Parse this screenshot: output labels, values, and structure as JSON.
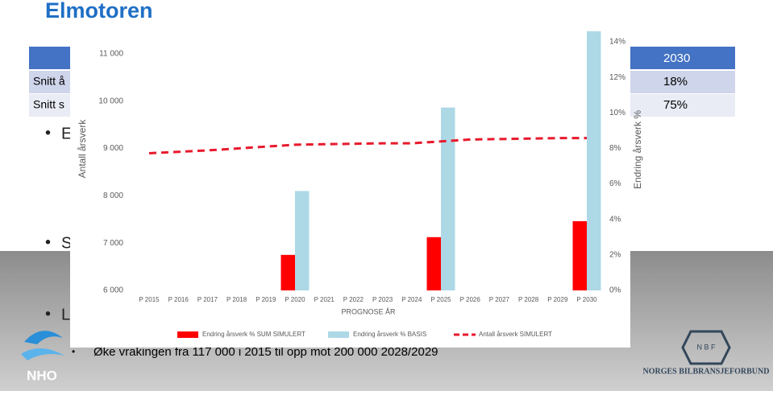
{
  "slide": {
    "title": "Elmotoren",
    "table": {
      "header_last": "2030",
      "rows": [
        [
          "Snitt å",
          "18%"
        ],
        [
          "Snitt s",
          "75%"
        ]
      ]
    },
    "bullets": [
      "E",
      "S",
      "L"
    ],
    "sub_bullet": "Øke vrakingen fra 117 000 i 2015 til opp mot 200 000 2028/2029",
    "logo_left": "NHO",
    "logo_right": "NORGES BILBRANSJEFORBUND"
  },
  "chart_data": {
    "type": "combo",
    "x_label": "PROGNOSE ÅR",
    "y_label": "Antall årsverk",
    "y2_label": "Endring årsverk %",
    "categories": [
      "P 2015",
      "P 2016",
      "P 2017",
      "P 2018",
      "P 2019",
      "P 2020",
      "P 2021",
      "P 2022",
      "P 2023",
      "P 2024",
      "P 2025",
      "P 2026",
      "P 2027",
      "P 2028",
      "P 2029",
      "P 2030"
    ],
    "ylim": [
      6000,
      11000
    ],
    "yticks": [
      {
        "value": 6000,
        "label": "6 000"
      },
      {
        "value": 7000,
        "label": "7 000"
      },
      {
        "value": 8000,
        "label": "8 000"
      },
      {
        "value": 9000,
        "label": "9 000"
      },
      {
        "value": 10000,
        "label": "10 000"
      },
      {
        "value": 11000,
        "label": "11 000"
      }
    ],
    "y2lim": [
      0,
      14
    ],
    "y2ticks": [
      {
        "value": 0,
        "label": "0%"
      },
      {
        "value": 2,
        "label": "2%"
      },
      {
        "value": 4,
        "label": "4%"
      },
      {
        "value": 6,
        "label": "6%"
      },
      {
        "value": 8,
        "label": "8%"
      },
      {
        "value": 10,
        "label": "10%"
      },
      {
        "value": 12,
        "label": "12%"
      },
      {
        "value": 14,
        "label": "14%"
      }
    ],
    "series": [
      {
        "name": "Endring årsverk % SUM SIMULERT",
        "type": "bar",
        "axis": "y2",
        "color": "#ff0000",
        "values": [
          null,
          null,
          null,
          null,
          null,
          2.0,
          null,
          null,
          null,
          null,
          3.0,
          null,
          null,
          null,
          null,
          3.9
        ]
      },
      {
        "name": "Endring årsverk % BASIS",
        "type": "bar",
        "axis": "y2",
        "color": "#add8e6",
        "values": [
          null,
          null,
          null,
          null,
          null,
          5.6,
          null,
          null,
          null,
          null,
          10.3,
          null,
          null,
          null,
          null,
          14.6
        ]
      },
      {
        "name": "Antall årsverk SIMULERT",
        "type": "line",
        "style": "dashed",
        "color": "#e8192c",
        "values": [
          8900,
          8930,
          8960,
          9000,
          9040,
          9080,
          9090,
          9100,
          9110,
          9110,
          9150,
          9190,
          9200,
          9210,
          9220,
          9220
        ]
      }
    ]
  }
}
